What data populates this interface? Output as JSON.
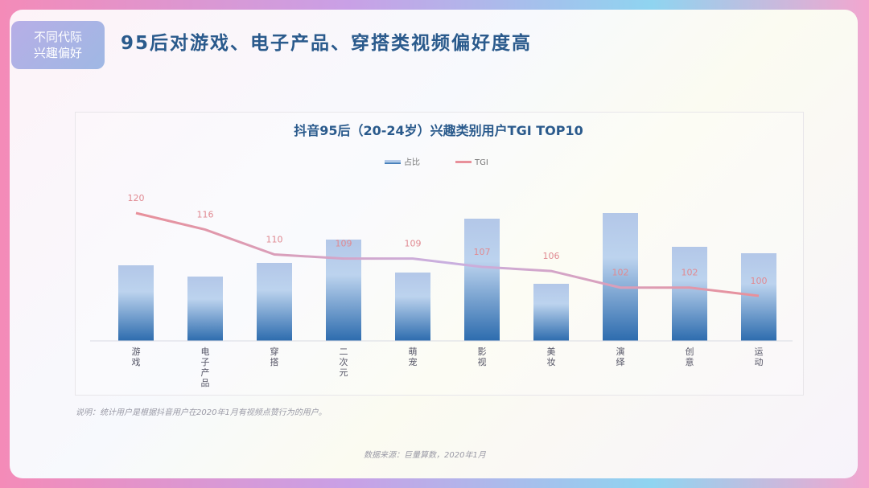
{
  "slide": {
    "tag_line1": "不同代际",
    "tag_line2": "兴趣偏好",
    "headline": "95后对游戏、电子产品、穿搭类视频偏好度高",
    "note": "说明：统计用户是根据抖音用户在2020年1月有视频点赞行为的用户。",
    "source": "数据来源：巨量算数，2020年1月"
  },
  "colors": {
    "bar_top": "#b9cdea",
    "bar_bottom": "#2f6fb0",
    "line": "#e8909a",
    "title": "#2a5a8c",
    "label": "#e08a92"
  },
  "chart_data": {
    "type": "bar",
    "title": "抖音95后（20-24岁）兴趣类别用户TGI TOP10",
    "legend": [
      "占比",
      "TGI"
    ],
    "legend_position": "top-center",
    "categories": [
      "游戏",
      "电子产品",
      "穿搭",
      "二次元",
      "萌宠",
      "影视",
      "美妆",
      "演绎",
      "创意",
      "运动"
    ],
    "series": [
      {
        "name": "占比",
        "type": "bar",
        "values": [
          94,
          80,
          97,
          126,
          85,
          152,
          71,
          159,
          117,
          109
        ],
        "note_units": "relative (no axis shown)"
      },
      {
        "name": "TGI",
        "type": "line",
        "values": [
          120,
          116,
          110,
          109,
          109,
          107,
          106,
          102,
          102,
          100
        ]
      }
    ],
    "grid": false
  }
}
